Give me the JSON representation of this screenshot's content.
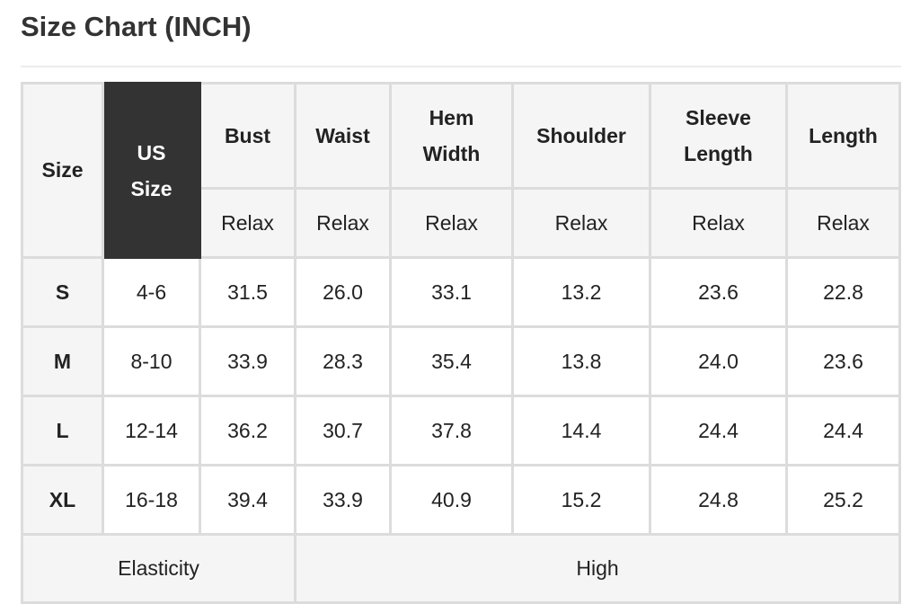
{
  "title": "Size Chart (INCH)",
  "table": {
    "headers": [
      "Size",
      "US Size",
      "Bust",
      "Waist",
      "Hem Width",
      "Shoulder",
      "Sleeve Length",
      "Length"
    ],
    "sub_headers": [
      "Relax",
      "Relax",
      "Relax",
      "Relax",
      "Relax",
      "Relax"
    ],
    "rows": [
      [
        "S",
        "4-6",
        "31.5",
        "26.0",
        "33.1",
        "13.2",
        "23.6",
        "22.8"
      ],
      [
        "M",
        "8-10",
        "33.9",
        "28.3",
        "35.4",
        "13.8",
        "24.0",
        "23.6"
      ],
      [
        "L",
        "12-14",
        "36.2",
        "30.7",
        "37.8",
        "14.4",
        "24.4",
        "24.4"
      ],
      [
        "XL",
        "16-18",
        "39.4",
        "33.9",
        "40.9",
        "15.2",
        "24.8",
        "25.2"
      ]
    ],
    "footer": {
      "label": "Elasticity",
      "value": "High"
    }
  },
  "colors": {
    "header_bg": "#f5f5f5",
    "us_size_bg": "#333333",
    "border": "#dcdcdc"
  }
}
